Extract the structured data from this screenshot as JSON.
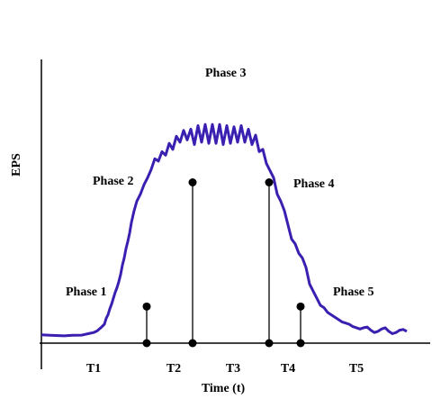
{
  "chart_data": {
    "type": "line",
    "title": "",
    "xlabel": "Time (t)",
    "ylabel": "EPS",
    "phases": [
      "Phase 1",
      "Phase 2",
      "Phase 3",
      "Phase 4",
      "Phase 5"
    ],
    "intervals": [
      "T1",
      "T2",
      "T3",
      "T4",
      "T5"
    ],
    "series": [
      {
        "color": "#3a1fb0",
        "x": [
          0,
          10,
          25,
          35,
          45,
          52,
          58,
          62,
          66,
          70,
          72,
          74,
          76,
          78,
          80,
          82,
          84,
          86,
          88,
          90,
          92,
          94,
          96,
          98,
          100,
          103,
          106,
          110,
          114,
          118,
          122,
          126,
          130,
          134,
          138,
          142,
          146,
          150,
          154,
          158,
          162,
          166,
          170,
          174,
          178,
          182,
          186,
          190,
          194,
          198,
          202,
          206,
          210,
          214,
          218,
          222,
          226,
          230,
          234,
          238,
          242,
          246,
          250,
          254,
          258,
          262,
          266,
          270,
          274,
          278,
          282,
          286,
          290,
          294,
          298,
          302,
          306,
          310,
          314,
          318,
          322,
          326,
          330,
          334,
          338,
          342,
          346,
          350,
          354,
          358,
          362,
          366,
          370,
          374,
          378,
          382,
          386,
          390,
          394,
          398,
          402,
          406
        ],
        "y": [
          3.5,
          3.3,
          3.1,
          3.3,
          3.4,
          4.0,
          4.5,
          5.2,
          6.5,
          8.0,
          10.5,
          12.0,
          14.5,
          16.5,
          19.0,
          21.5,
          23.5,
          26.0,
          29.0,
          33.0,
          36.0,
          40.0,
          43.0,
          46.5,
          51.0,
          56.0,
          60.0,
          63.0,
          67.0,
          70.0,
          73.5,
          78.0,
          77.0,
          81.0,
          79.5,
          84.5,
          82.0,
          87.5,
          85.0,
          90.0,
          86.0,
          90.5,
          84.0,
          92.0,
          85.0,
          92.5,
          84.5,
          92.5,
          84.5,
          92.5,
          84.0,
          92.0,
          84.5,
          91.5,
          85.0,
          92.0,
          85.0,
          90.5,
          84.0,
          88.0,
          81.0,
          82.0,
          76.0,
          73.0,
          70.0,
          63.0,
          60.0,
          56.0,
          50.0,
          44.0,
          42.0,
          38.0,
          36.0,
          32.0,
          25.0,
          22.0,
          19.0,
          16.0,
          15.0,
          13.0,
          12.0,
          11.0,
          10.0,
          9.0,
          8.5,
          8.0,
          7.0,
          6.5,
          6.0,
          6.5,
          6.8,
          5.5,
          4.5,
          5.0,
          6.0,
          6.5,
          5.0,
          4.0,
          4.5,
          5.5,
          5.8,
          5.0
        ]
      }
    ],
    "ylim": [
      0,
      120
    ],
    "xlim": [
      0,
      420
    ],
    "markers": [
      {
        "x": 117,
        "y": 15.5
      },
      {
        "x": 168,
        "y": 68
      },
      {
        "x": 253,
        "y": 68
      },
      {
        "x": 288,
        "y": 15.5
      }
    ],
    "grid": false,
    "legend": "none"
  }
}
